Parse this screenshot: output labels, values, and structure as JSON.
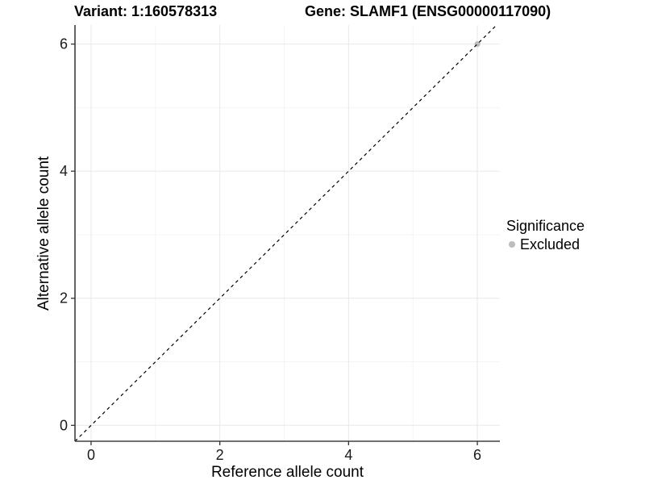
{
  "chart_data": {
    "type": "scatter",
    "title_left": "Variant: 1:160578313",
    "title_right": "Gene: SLAMF1 (ENSG00000117090)",
    "xlabel": "Reference allele count",
    "ylabel": "Alternative allele count",
    "xlim": [
      -0.25,
      6.35
    ],
    "ylim": [
      -0.25,
      6.3
    ],
    "x_breaks": [
      0,
      2,
      4,
      6
    ],
    "y_breaks": [
      0,
      2,
      4,
      6
    ],
    "x_minor_breaks": [
      1,
      3,
      5
    ],
    "y_minor_breaks": [
      1,
      3,
      5
    ],
    "grid": true,
    "points": [
      {
        "x": 6,
        "y": 6,
        "significance": "Excluded"
      }
    ],
    "reference_line": {
      "type": "abline",
      "slope": 1,
      "intercept": 0,
      "linetype": "dashed",
      "color": "#000000"
    },
    "legend": {
      "position": "right",
      "title": "Significance",
      "items": [
        {
          "label": "Excluded",
          "color": "#bdbdbd"
        }
      ]
    },
    "colors": {
      "point": "#bdbdbd",
      "grid_major": "#e8e8e8",
      "grid_minor": "#f4f4f4",
      "axis": "#404040",
      "tick": "#333333",
      "tick_label": "#1a1a1a",
      "background": "#ffffff"
    }
  }
}
